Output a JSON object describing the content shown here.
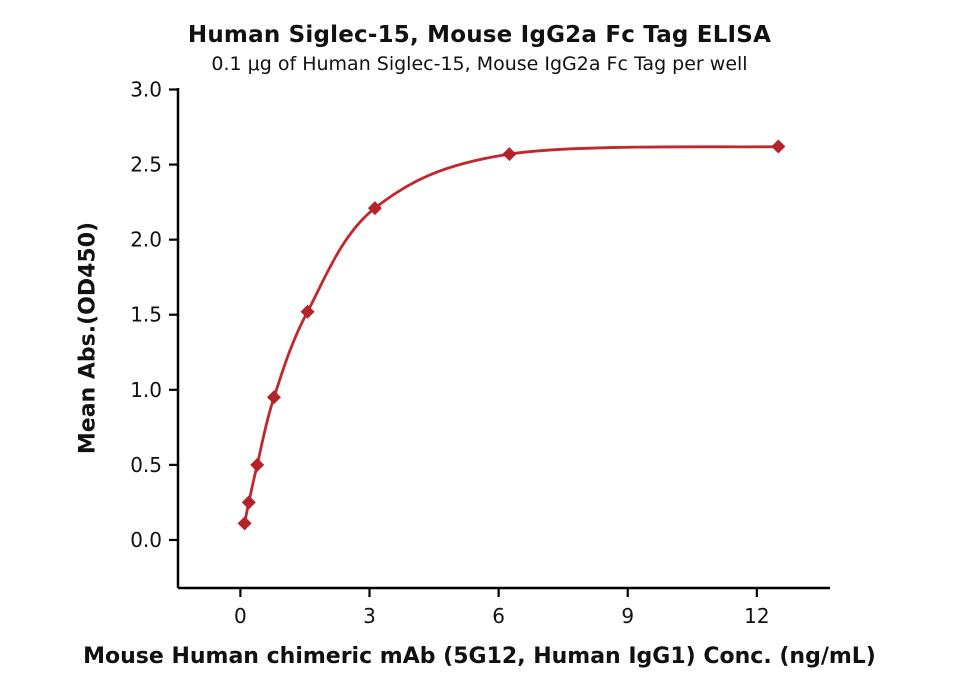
{
  "chart": {
    "title": "Human Siglec-15, Mouse IgG2a Fc Tag ELISA",
    "subtitle": "0.1 μg of Human Siglec-15, Mouse IgG2a Fc Tag per well",
    "xlabel": "Mouse Human chimeric mAb (5G12, Human IgG1) Conc. (ng/mL)",
    "ylabel": "Mean Abs.(OD450)"
  },
  "chart_data": {
    "type": "scatter",
    "title": "Human Siglec-15, Mouse IgG2a Fc Tag ELISA",
    "subtitle": "0.1 μg of Human Siglec-15, Mouse IgG2a Fc Tag per well",
    "xlabel": "Mouse Human chimeric mAb (5G12, Human IgG1) Conc. (ng/mL)",
    "ylabel": "Mean Abs.(OD450)",
    "x": [
      0.098,
      0.195,
      0.39,
      0.78,
      1.56,
      3.125,
      6.25,
      12.5
    ],
    "y": [
      0.11,
      0.25,
      0.5,
      0.95,
      1.52,
      2.21,
      2.57,
      2.62
    ],
    "marker": "diamond",
    "curve": "smooth 4PL-style fit through points",
    "x_ticks": [
      0,
      3,
      6,
      9,
      12
    ],
    "x_tick_labels": [
      "0",
      "3",
      "6",
      "9",
      "12"
    ],
    "y_ticks": [
      0.0,
      0.5,
      1.0,
      1.5,
      2.0,
      2.5,
      3.0
    ],
    "y_tick_labels": [
      "0.0",
      "0.5",
      "1.0",
      "1.5",
      "2.0",
      "2.5",
      "3.0"
    ],
    "xlim": [
      -1.45,
      13.7
    ],
    "ylim": [
      -0.32,
      3.01
    ],
    "grid": false,
    "legend": "none",
    "colors": {
      "curve": "#c1272d",
      "marker": "#b5232a",
      "axis": "#000000",
      "text": "#111111"
    }
  }
}
